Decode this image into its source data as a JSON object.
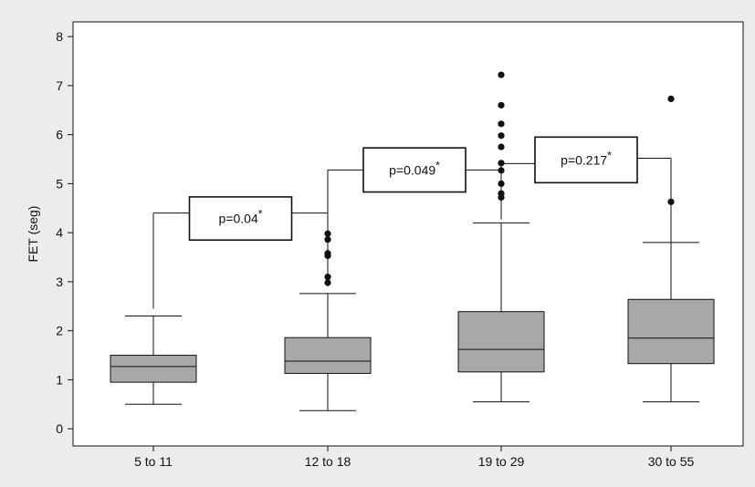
{
  "chart_data": {
    "type": "box",
    "title": "",
    "xlabel": "",
    "ylabel": "FET (seg)",
    "ylim": [
      -0.35,
      8.3
    ],
    "yticks": [
      0,
      1,
      2,
      3,
      4,
      5,
      6,
      7,
      8
    ],
    "grid": false,
    "colors": {
      "box_fill": "#a8a8a8",
      "line": "#111111",
      "outer_bg": "#ececec",
      "plot_bg": "#ffffff"
    },
    "categories": [
      "5 to 11",
      "12 to 18",
      "19 to 29",
      "30 to 55"
    ],
    "boxes": [
      {
        "whisker_low": 0.5,
        "q1": 0.95,
        "median": 1.27,
        "q3": 1.5,
        "whisker_high": 2.3,
        "outliers": []
      },
      {
        "whisker_low": 0.37,
        "q1": 1.13,
        "median": 1.38,
        "q3": 1.86,
        "whisker_high": 2.76,
        "outliers": [
          2.98,
          3.1,
          3.53,
          3.58,
          3.86,
          3.98
        ]
      },
      {
        "whisker_low": 0.55,
        "q1": 1.16,
        "median": 1.62,
        "q3": 2.39,
        "whisker_high": 4.2,
        "outliers": [
          4.72,
          4.8,
          5.0,
          5.27,
          5.42,
          5.75,
          5.98,
          6.22,
          6.6,
          7.22
        ]
      },
      {
        "whisker_low": 0.55,
        "q1": 1.33,
        "median": 1.85,
        "q3": 2.64,
        "whisker_high": 3.8,
        "outliers": [
          4.63,
          6.73
        ]
      }
    ],
    "annotations": [
      {
        "text": "p=0.04",
        "mark": "*",
        "from": 0,
        "to": 1,
        "bracket_y": 4.4,
        "left_end": 2.45,
        "right_end": 2.9,
        "box_bottom": 3.85,
        "box_top": 4.73
      },
      {
        "text": "p=0.049",
        "mark": "*",
        "from": 1,
        "to": 2,
        "bracket_y": 5.28,
        "left_end": 2.98,
        "right_end": 4.3,
        "box_bottom": 4.83,
        "box_top": 5.73
      },
      {
        "text": "p=0.217",
        "mark": "*",
        "from": 2,
        "to": 3,
        "bracket_y": 5.41,
        "left_end": 4.27,
        "right_end": 3.72,
        "box_bottom": 5.02,
        "box_top": 5.95,
        "right_bracket_y": 5.52
      }
    ]
  }
}
